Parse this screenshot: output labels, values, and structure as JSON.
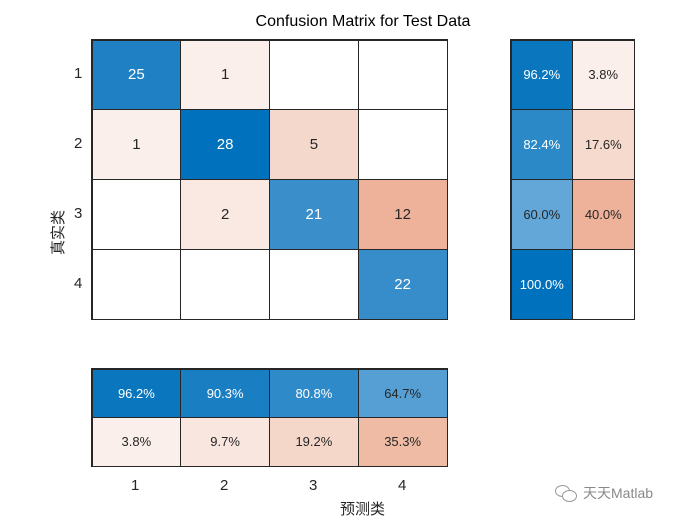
{
  "title": "Confusion Matrix for Test Data",
  "ylabel": "真实类",
  "xlabel": "预测类",
  "watermark": "天天Matlab",
  "y_ticks": [
    "1",
    "2",
    "3",
    "4"
  ],
  "x_ticks": [
    "1",
    "2",
    "3",
    "4"
  ],
  "matrix": {
    "rows": [
      [
        {
          "v": "25",
          "bg": "#1f81c4",
          "fg": "#ffffff"
        },
        {
          "v": "1",
          "bg": "#fbefeb",
          "fg": "#262626"
        },
        {
          "v": "",
          "bg": "#ffffff",
          "fg": "#262626"
        },
        {
          "v": "",
          "bg": "#ffffff",
          "fg": "#262626"
        }
      ],
      [
        {
          "v": "1",
          "bg": "#fbefeb",
          "fg": "#262626"
        },
        {
          "v": "28",
          "bg": "#0072bd",
          "fg": "#ffffff"
        },
        {
          "v": "5",
          "bg": "#f5d8cc",
          "fg": "#262626"
        },
        {
          "v": "",
          "bg": "#ffffff",
          "fg": "#262626"
        }
      ],
      [
        {
          "v": "",
          "bg": "#ffffff",
          "fg": "#262626"
        },
        {
          "v": "2",
          "bg": "#f9e9e2",
          "fg": "#262626"
        },
        {
          "v": "21",
          "bg": "#3a8fcb",
          "fg": "#ffffff"
        },
        {
          "v": "12",
          "bg": "#eeb29a",
          "fg": "#262626"
        }
      ],
      [
        {
          "v": "",
          "bg": "#ffffff",
          "fg": "#262626"
        },
        {
          "v": "",
          "bg": "#ffffff",
          "fg": "#262626"
        },
        {
          "v": "",
          "bg": "#ffffff",
          "fg": "#262626"
        },
        {
          "v": "22",
          "bg": "#368dca",
          "fg": "#ffffff"
        }
      ]
    ]
  },
  "row_summary": {
    "rows": [
      [
        {
          "v": "96.2%",
          "bg": "#0a76be",
          "fg": "#ffffff"
        },
        {
          "v": "3.8%",
          "bg": "#fbefeb",
          "fg": "#262626"
        }
      ],
      [
        {
          "v": "82.4%",
          "bg": "#2b89c8",
          "fg": "#ffffff"
        },
        {
          "v": "17.6%",
          "bg": "#f6dace",
          "fg": "#262626"
        }
      ],
      [
        {
          "v": "60.0%",
          "bg": "#62a7d7",
          "fg": "#262626"
        },
        {
          "v": "40.0%",
          "bg": "#eeb29a",
          "fg": "#262626"
        }
      ],
      [
        {
          "v": "100.0%",
          "bg": "#0072bd",
          "fg": "#ffffff"
        },
        {
          "v": "",
          "bg": "#ffffff",
          "fg": "#262626"
        }
      ]
    ]
  },
  "col_summary": {
    "rows": [
      [
        {
          "v": "96.2%",
          "bg": "#0a76be",
          "fg": "#ffffff"
        },
        {
          "v": "90.3%",
          "bg": "#1a7ec3",
          "fg": "#ffffff"
        },
        {
          "v": "80.8%",
          "bg": "#2e8ac8",
          "fg": "#ffffff"
        },
        {
          "v": "64.7%",
          "bg": "#559fd4",
          "fg": "#262626"
        }
      ],
      [
        {
          "v": "3.8%",
          "bg": "#fbefeb",
          "fg": "#262626"
        },
        {
          "v": "9.7%",
          "bg": "#f9e6de",
          "fg": "#262626"
        },
        {
          "v": "19.2%",
          "bg": "#f5d7ca",
          "fg": "#262626"
        },
        {
          "v": "35.3%",
          "bg": "#efbba5",
          "fg": "#262626"
        }
      ]
    ]
  },
  "chart_data": {
    "type": "heatmap",
    "title": "Confusion Matrix for Test Data",
    "xlabel": "预测类",
    "ylabel": "真实类",
    "classes": [
      "1",
      "2",
      "3",
      "4"
    ],
    "values": [
      [
        25,
        1,
        0,
        0
      ],
      [
        1,
        28,
        5,
        0
      ],
      [
        0,
        2,
        21,
        12
      ],
      [
        0,
        0,
        0,
        22
      ]
    ],
    "row_summary": {
      "correct": [
        "96.2%",
        "82.4%",
        "60.0%",
        "100.0%"
      ],
      "incorrect": [
        "3.8%",
        "17.6%",
        "40.0%",
        ""
      ]
    },
    "column_summary": {
      "correct": [
        "96.2%",
        "90.3%",
        "80.8%",
        "64.7%"
      ],
      "incorrect": [
        "3.8%",
        "9.7%",
        "19.2%",
        "35.3%"
      ]
    }
  }
}
